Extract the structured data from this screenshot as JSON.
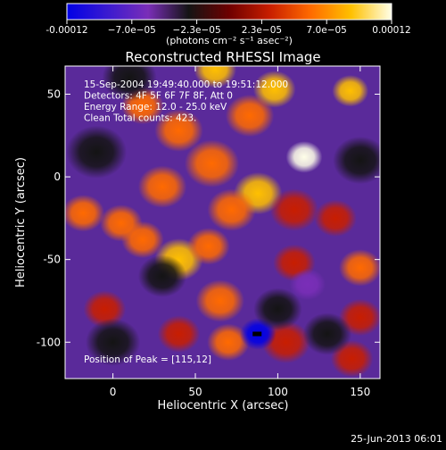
{
  "colorbar": {
    "tick_labels": [
      "-0.00012",
      "−7.0e−05",
      "−2.3e−05",
      "2.3e−05",
      "7.0e−05",
      "0.00012"
    ],
    "range": [
      -0.00012,
      0.00012
    ],
    "unit_label": "(photons cm⁻² s⁻¹ asec⁻²)",
    "colors": [
      "#0000e6",
      "#3a1ad0",
      "#7a2eb8",
      "#141414",
      "#6e0000",
      "#c81e00",
      "#ff6a00",
      "#ffc000",
      "#ffffe8"
    ]
  },
  "chart_data": {
    "type": "heatmap",
    "title": "Reconstructed RHESSI Image",
    "xlabel": "Heliocentric X (arcsec)",
    "ylabel": "Heliocentric Y (arcsec)",
    "xlim": [
      -29,
      162
    ],
    "ylim": [
      -122,
      67
    ],
    "x_ticks": [
      0,
      50,
      100,
      150
    ],
    "y_ticks": [
      -100,
      -50,
      0,
      50
    ],
    "annotations": [
      "15-Sep-2004 19:49:40.000 to 19:51:12.000",
      "Detectors: 4F 5F 6F 7F 8F, Att 0",
      "Energy Range: 12.0 - 25.0 keV",
      "Clean     Total counts: 423."
    ],
    "peak_label": "Position of Peak = [115,12]",
    "peak_position": [
      115,
      12
    ],
    "sources": [
      {
        "x": 62,
        "y": 65,
        "v": 0.0001,
        "r": 7
      },
      {
        "x": 116,
        "y": 12,
        "v": 0.00012,
        "r": 6
      },
      {
        "x": 98,
        "y": 53,
        "v": 9e-05,
        "r": 7
      },
      {
        "x": 144,
        "y": 52,
        "v": 8e-05,
        "r": 6
      },
      {
        "x": 83,
        "y": 37,
        "v": 6e-05,
        "r": 8
      },
      {
        "x": 40,
        "y": 28,
        "v": 5e-05,
        "r": 8
      },
      {
        "x": 18,
        "y": 43,
        "v": 5e-05,
        "r": 7
      },
      {
        "x": 60,
        "y": 8,
        "v": 7e-05,
        "r": 9
      },
      {
        "x": 30,
        "y": -6,
        "v": 6e-05,
        "r": 8
      },
      {
        "x": 88,
        "y": -10,
        "v": 8e-05,
        "r": 8
      },
      {
        "x": 72,
        "y": -20,
        "v": 6e-05,
        "r": 8
      },
      {
        "x": -18,
        "y": -22,
        "v": 6e-05,
        "r": 7
      },
      {
        "x": 5,
        "y": -28,
        "v": 5e-05,
        "r": 7
      },
      {
        "x": 40,
        "y": -50,
        "v": 8e-05,
        "r": 8
      },
      {
        "x": 58,
        "y": -42,
        "v": 6e-05,
        "r": 7
      },
      {
        "x": 18,
        "y": -38,
        "v": 6e-05,
        "r": 7
      },
      {
        "x": 110,
        "y": -20,
        "v": 4e-05,
        "r": 8
      },
      {
        "x": 150,
        "y": -55,
        "v": 7e-05,
        "r": 7
      },
      {
        "x": 135,
        "y": -25,
        "v": 4e-05,
        "r": 7
      },
      {
        "x": 65,
        "y": -75,
        "v": 5e-05,
        "r": 8
      },
      {
        "x": 70,
        "y": -100,
        "v": 5e-05,
        "r": 7
      },
      {
        "x": 150,
        "y": -85,
        "v": 4e-05,
        "r": 7
      },
      {
        "x": 145,
        "y": -110,
        "v": 4e-05,
        "r": 7
      },
      {
        "x": 40,
        "y": -95,
        "v": 4e-05,
        "r": 7
      },
      {
        "x": 105,
        "y": -100,
        "v": 3e-05,
        "r": 8
      },
      {
        "x": -5,
        "y": -80,
        "v": 3e-05,
        "r": 7
      },
      {
        "x": 110,
        "y": -52,
        "v": 3e-05,
        "r": 7
      },
      {
        "x": -10,
        "y": 15,
        "v": -2e-05,
        "r": 10
      },
      {
        "x": 0,
        "y": -100,
        "v": -3e-05,
        "r": 9
      },
      {
        "x": 88,
        "y": -95,
        "v": -0.00012,
        "r": 6
      },
      {
        "x": 100,
        "y": -80,
        "v": -4e-05,
        "r": 8
      },
      {
        "x": 118,
        "y": -65,
        "v": -5e-05,
        "r": 6
      },
      {
        "x": 150,
        "y": 10,
        "v": -3e-05,
        "r": 9
      },
      {
        "x": 130,
        "y": -95,
        "v": -3e-05,
        "r": 8
      },
      {
        "x": 30,
        "y": -60,
        "v": -2e-05,
        "r": 8
      },
      {
        "x": 10,
        "y": 60,
        "v": -3e-05,
        "r": 9
      }
    ]
  },
  "footer": {
    "timestamp": "25-Jun-2013 06:01"
  }
}
